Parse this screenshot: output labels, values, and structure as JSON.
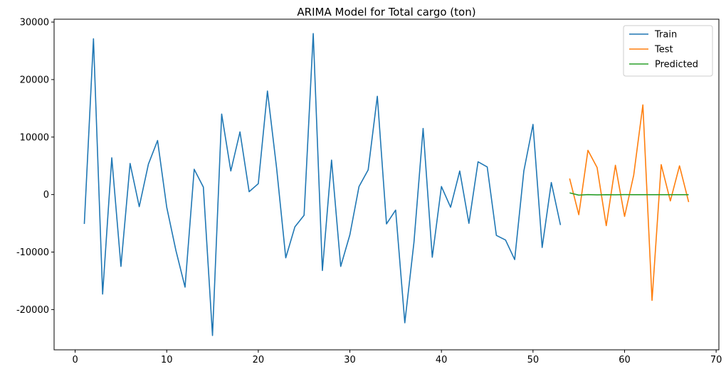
{
  "chart_data": {
    "type": "line",
    "title": "ARIMA Model for Total cargo (ton)",
    "xlabel": "",
    "ylabel": "",
    "xlim": [
      -2.3,
      70.3
    ],
    "ylim": [
      -27000,
      30500
    ],
    "x_ticks": [
      0,
      10,
      20,
      30,
      40,
      50,
      60,
      70
    ],
    "y_ticks": [
      -20000,
      -10000,
      0,
      10000,
      20000,
      30000
    ],
    "grid": false,
    "legend_position": "top-right",
    "series": [
      {
        "name": "Train",
        "color": "#1f77b4",
        "x": [
          1,
          2,
          3,
          4,
          5,
          6,
          7,
          8,
          9,
          10,
          11,
          12,
          13,
          14,
          15,
          16,
          17,
          18,
          19,
          20,
          21,
          22,
          23,
          24,
          25,
          26,
          27,
          28,
          29,
          30,
          31,
          32,
          33,
          34,
          35,
          36,
          37,
          38,
          39,
          40,
          41,
          42,
          43,
          44,
          45,
          46,
          47,
          48,
          49,
          50,
          51,
          52,
          53
        ],
        "values": [
          -5100,
          27100,
          -17300,
          6400,
          -12500,
          5400,
          -2100,
          5300,
          9400,
          -2200,
          -9700,
          -16100,
          4400,
          1300,
          -24500,
          14000,
          4100,
          10900,
          500,
          1900,
          18000,
          4600,
          -11000,
          -5600,
          -3600,
          28000,
          -13200,
          6000,
          -12500,
          -7000,
          1400,
          4300,
          17100,
          -5100,
          -2700,
          -22300,
          -8300,
          11500,
          -10900,
          1400,
          -2200,
          4100,
          -5000,
          5700,
          4800,
          -7100,
          -7900,
          -11300,
          4100,
          12200,
          -9200,
          2100,
          -5300
        ]
      },
      {
        "name": "Test",
        "color": "#ff7f0e",
        "x": [
          54,
          55,
          56,
          57,
          58,
          59,
          60,
          61,
          62,
          63,
          64,
          65,
          66,
          67
        ],
        "values": [
          2800,
          -3500,
          7700,
          4700,
          -5400,
          5100,
          -3800,
          3400,
          15600,
          -18400,
          5200,
          -1100,
          5000,
          -1300
        ]
      },
      {
        "name": "Predicted",
        "color": "#2ca02c",
        "x": [
          54,
          55,
          56,
          57,
          58,
          59,
          60,
          61,
          62,
          63,
          64,
          65,
          66,
          67
        ],
        "values": [
          300,
          -100,
          0,
          -50,
          -20,
          -30,
          -10,
          -20,
          -15,
          -15,
          -15,
          -15,
          -15,
          -15
        ]
      }
    ]
  }
}
